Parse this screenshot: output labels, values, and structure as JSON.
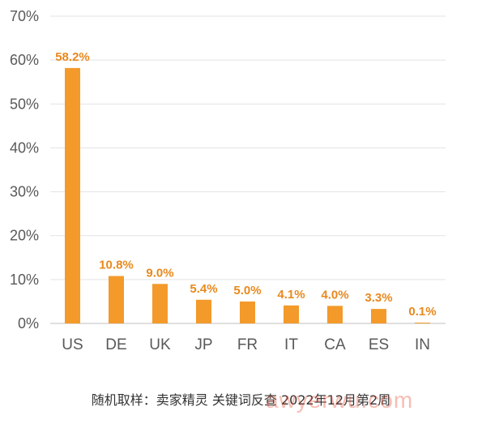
{
  "chart_data": {
    "type": "bar",
    "categories": [
      "US",
      "DE",
      "UK",
      "JP",
      "FR",
      "IT",
      "CA",
      "ES",
      "IN"
    ],
    "values": [
      58.2,
      10.8,
      9.0,
      5.4,
      5.0,
      4.1,
      4.0,
      3.3,
      0.1
    ],
    "value_labels": [
      "58.2%",
      "10.8%",
      "9.0%",
      "5.4%",
      "5.0%",
      "4.1%",
      "4.0%",
      "3.3%",
      "0.1%"
    ],
    "ylim": [
      0,
      70
    ],
    "yticks": [
      0,
      10,
      20,
      30,
      40,
      50,
      60,
      70
    ],
    "ytick_labels": [
      "0%",
      "10%",
      "20%",
      "30%",
      "40%",
      "50%",
      "60%",
      "70%"
    ],
    "grid": true,
    "bar_color": "#f39a2b",
    "label_color": "#e8891e"
  },
  "caption": "随机取样：卖家精灵 关键词反查  2022年12月第2周",
  "watermark": "awyerwu.com"
}
